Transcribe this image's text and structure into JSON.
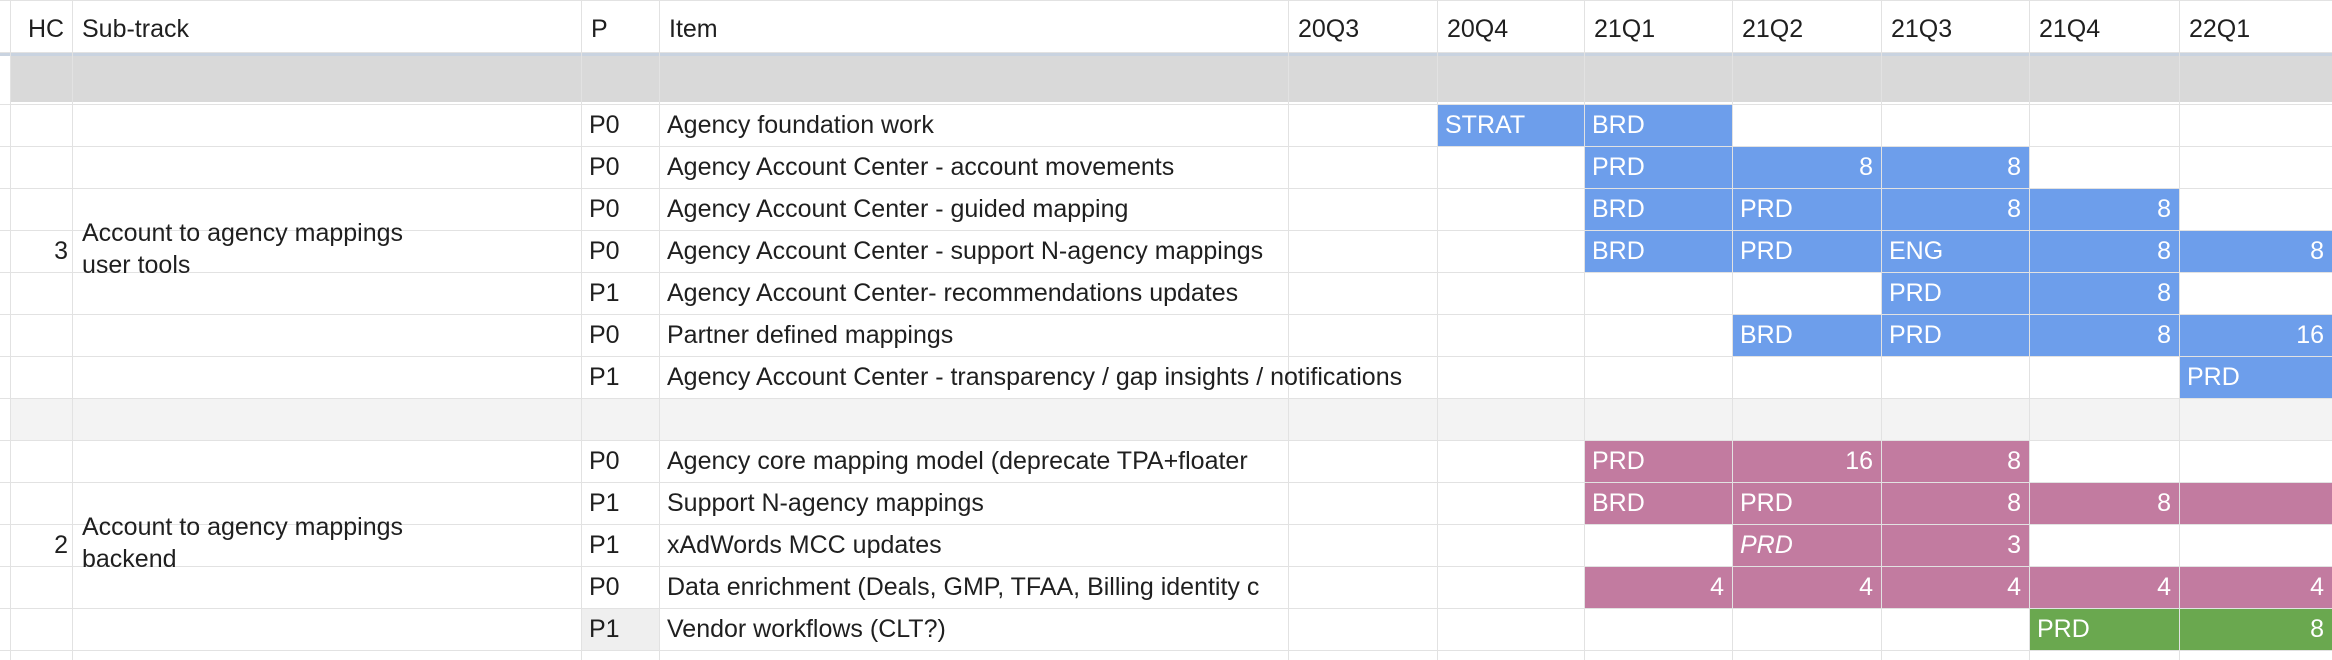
{
  "headers": [
    "HC",
    "Sub-track",
    "P",
    "Item",
    "20Q3",
    "20Q4",
    "21Q1",
    "21Q2",
    "21Q3",
    "21Q4",
    "22Q1"
  ],
  "colors": {
    "blue": "#6d9eeb",
    "pink": "#c27ba0",
    "green": "#6aa84f",
    "grey_row": "#d9d9d9",
    "light_grey_row": "#f3f3f3",
    "p_cell_highlight": "#efefef",
    "header_border": "#c9d3e0"
  },
  "groups": [
    {
      "hc": "3",
      "subtrack": "Account to agency mappings\nuser tools",
      "rows": [
        {
          "p": "P0",
          "item": "Agency foundation work"
        },
        {
          "p": "P0",
          "item": "Agency Account Center - account movements"
        },
        {
          "p": "P0",
          "item": "Agency Account Center - guided mapping"
        },
        {
          "p": "P0",
          "item": "Agency Account Center - support N-agency mappings"
        },
        {
          "p": "P1",
          "item": "Agency Account Center- recommendations updates"
        },
        {
          "p": "P0",
          "item": "Partner defined mappings"
        },
        {
          "p": "P1",
          "item": "Agency Account Center - transparency / gap insights / notifications"
        }
      ]
    },
    {
      "hc": "2",
      "subtrack": "Account to agency mappings\nbackend",
      "rows": [
        {
          "p": "P0",
          "item": "Agency core mapping model (deprecate TPA+floater"
        },
        {
          "p": "P1",
          "item": "Support N-agency mappings"
        },
        {
          "p": "P1",
          "item": "xAdWords MCC updates"
        },
        {
          "p": "P0",
          "item": "Data enrichment (Deals, GMP, TFAA, Billing identity c"
        },
        {
          "p": "P1",
          "item": "Vendor workflows (CLT?)"
        }
      ]
    }
  ],
  "bars": [
    {
      "row": 0,
      "from": 5,
      "to": 5,
      "color": "blue",
      "labels": [
        {
          "col": 5,
          "text": "STRAT",
          "align": "left"
        }
      ]
    },
    {
      "row": 0,
      "from": 6,
      "to": 6,
      "color": "blue",
      "labels": [
        {
          "col": 6,
          "text": "BRD",
          "align": "left"
        }
      ]
    },
    {
      "row": 1,
      "from": 6,
      "to": 8,
      "color": "blue",
      "labels": [
        {
          "col": 6,
          "text": "PRD",
          "align": "left"
        },
        {
          "col": 7,
          "text": "8",
          "align": "right"
        },
        {
          "col": 8,
          "text": "8",
          "align": "right"
        }
      ]
    },
    {
      "row": 2,
      "from": 6,
      "to": 9,
      "color": "blue",
      "labels": [
        {
          "col": 6,
          "text": "BRD",
          "align": "left"
        },
        {
          "col": 7,
          "text": "PRD",
          "align": "left"
        },
        {
          "col": 8,
          "text": "8",
          "align": "right"
        },
        {
          "col": 9,
          "text": "8",
          "align": "right"
        }
      ]
    },
    {
      "row": 3,
      "from": 6,
      "to": 10,
      "color": "blue",
      "labels": [
        {
          "col": 6,
          "text": "BRD",
          "align": "left"
        },
        {
          "col": 7,
          "text": "PRD",
          "align": "left"
        },
        {
          "col": 8,
          "text": "ENG",
          "align": "left"
        },
        {
          "col": 9,
          "text": "8",
          "align": "right"
        },
        {
          "col": 10,
          "text": "8",
          "align": "right"
        }
      ]
    },
    {
      "row": 4,
      "from": 8,
      "to": 9,
      "color": "blue",
      "labels": [
        {
          "col": 8,
          "text": "PRD",
          "align": "left"
        },
        {
          "col": 9,
          "text": "8",
          "align": "right"
        }
      ]
    },
    {
      "row": 5,
      "from": 7,
      "to": 10,
      "color": "blue",
      "labels": [
        {
          "col": 7,
          "text": "BRD",
          "align": "left"
        },
        {
          "col": 8,
          "text": "PRD",
          "align": "left"
        },
        {
          "col": 9,
          "text": "8",
          "align": "right"
        },
        {
          "col": 10,
          "text": "16",
          "align": "right"
        }
      ]
    },
    {
      "row": 6,
      "from": 10,
      "to": 10,
      "color": "blue",
      "labels": [
        {
          "col": 10,
          "text": "PRD",
          "align": "left"
        }
      ]
    },
    {
      "row": 7,
      "from": 6,
      "to": 8,
      "color": "pink",
      "labels": [
        {
          "col": 6,
          "text": "PRD",
          "align": "left"
        },
        {
          "col": 7,
          "text": "16",
          "align": "right"
        },
        {
          "col": 8,
          "text": "8",
          "align": "right"
        }
      ]
    },
    {
      "row": 8,
      "from": 6,
      "to": 10,
      "color": "pink",
      "labels": [
        {
          "col": 6,
          "text": "BRD",
          "align": "left"
        },
        {
          "col": 7,
          "text": "PRD",
          "align": "left"
        },
        {
          "col": 8,
          "text": "8",
          "align": "right"
        },
        {
          "col": 9,
          "text": "8",
          "align": "right"
        }
      ]
    },
    {
      "row": 9,
      "from": 7,
      "to": 8,
      "color": "pink",
      "labels": [
        {
          "col": 7,
          "text": "PRD",
          "align": "left",
          "italic": true
        },
        {
          "col": 8,
          "text": "3",
          "align": "right"
        }
      ]
    },
    {
      "row": 10,
      "from": 6,
      "to": 10,
      "color": "pink",
      "labels": [
        {
          "col": 6,
          "text": "4",
          "align": "right"
        },
        {
          "col": 7,
          "text": "4",
          "align": "right"
        },
        {
          "col": 8,
          "text": "4",
          "align": "right"
        },
        {
          "col": 9,
          "text": "4",
          "align": "right"
        },
        {
          "col": 10,
          "text": "4",
          "align": "right"
        }
      ]
    },
    {
      "row": 11,
      "from": 9,
      "to": 10,
      "color": "green",
      "labels": [
        {
          "col": 9,
          "text": "PRD",
          "align": "left"
        },
        {
          "col": 10,
          "text": "8",
          "align": "right"
        }
      ]
    }
  ]
}
